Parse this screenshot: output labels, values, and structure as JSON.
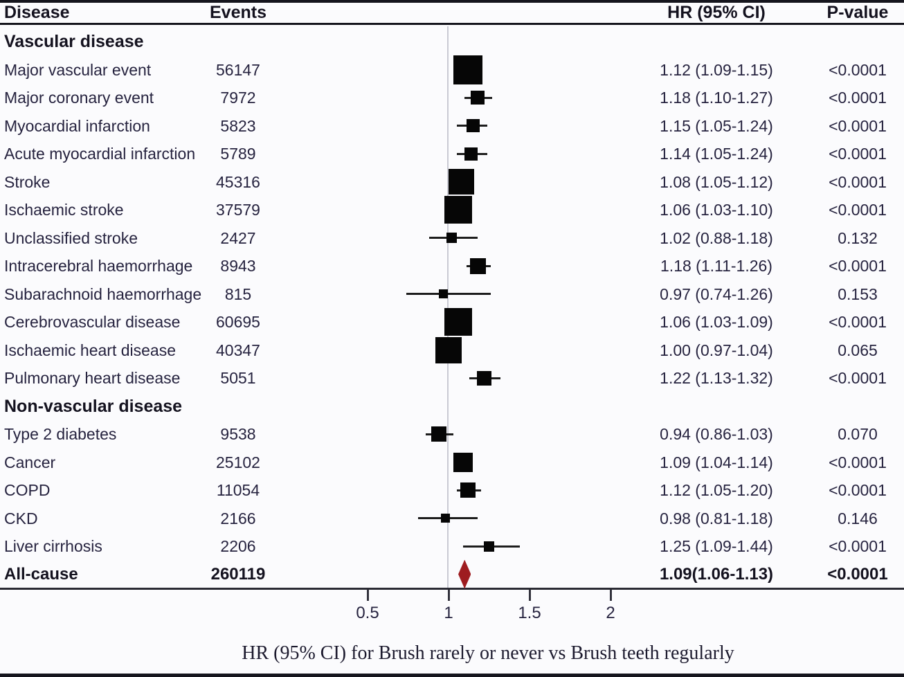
{
  "chart_data": {
    "type": "forest",
    "columns": [
      "Disease",
      "Events",
      "HR (95% CI)",
      "P-value"
    ],
    "xlabel": "HR (95% CI) for Brush rarely or never vs Brush teeth regularly",
    "x_ticks": [
      {
        "label": "0.5",
        "value": 0.5
      },
      {
        "label": "1",
        "value": 1
      },
      {
        "label": "1.5",
        "value": 1.5
      },
      {
        "label": "2",
        "value": 2
      }
    ],
    "x_range": [
      0.5,
      2
    ],
    "reference_line": 1,
    "legend_position": "none",
    "grid": false,
    "marker_color": "#060606",
    "diamond_color": "#9e1c20",
    "rows": [
      {
        "type": "section",
        "label": "Vascular disease"
      },
      {
        "type": "data",
        "label": "Major vascular event",
        "events": "56147",
        "hr_text": "1.12 (1.09-1.15)",
        "p": "<0.0001",
        "est": 1.12,
        "lo": 1.09,
        "hi": 1.15,
        "size": 42
      },
      {
        "type": "data",
        "label": "Major coronary event",
        "events": "7972",
        "hr_text": "1.18 (1.10-1.27)",
        "p": "<0.0001",
        "est": 1.18,
        "lo": 1.1,
        "hi": 1.27,
        "size": 20
      },
      {
        "type": "data",
        "label": "Myocardial infarction",
        "events": "5823",
        "hr_text": "1.15 (1.05-1.24)",
        "p": "<0.0001",
        "est": 1.15,
        "lo": 1.05,
        "hi": 1.24,
        "size": 19
      },
      {
        "type": "data",
        "label": "Acute myocardial infarction",
        "events": "5789",
        "hr_text": "1.14 (1.05-1.24)",
        "p": "<0.0001",
        "est": 1.14,
        "lo": 1.05,
        "hi": 1.24,
        "size": 19
      },
      {
        "type": "data",
        "label": "Stroke",
        "events": "45316",
        "hr_text": "1.08 (1.05-1.12)",
        "p": "<0.0001",
        "est": 1.08,
        "lo": 1.05,
        "hi": 1.12,
        "size": 37
      },
      {
        "type": "data",
        "label": "Ischaemic stroke",
        "events": "37579",
        "hr_text": "1.06 (1.03-1.10)",
        "p": "<0.0001",
        "est": 1.06,
        "lo": 1.03,
        "hi": 1.1,
        "size": 40
      },
      {
        "type": "data",
        "label": "Unclassified stroke",
        "events": "2427",
        "hr_text": "1.02 (0.88-1.18)",
        "p": "0.132",
        "est": 1.02,
        "lo": 0.88,
        "hi": 1.18,
        "size": 15
      },
      {
        "type": "data",
        "label": "Intracerebral haemorrhage",
        "events": "8943",
        "hr_text": "1.18 (1.11-1.26)",
        "p": "<0.0001",
        "est": 1.18,
        "lo": 1.11,
        "hi": 1.26,
        "size": 23
      },
      {
        "type": "data",
        "label": "Subarachnoid haemorrhage",
        "events": "815",
        "hr_text": "0.97 (0.74-1.26)",
        "p": "0.153",
        "est": 0.97,
        "lo": 0.74,
        "hi": 1.26,
        "size": 13
      },
      {
        "type": "data",
        "label": "Cerebrovascular disease",
        "events": "60695",
        "hr_text": "1.06 (1.03-1.09)",
        "p": "<0.0001",
        "est": 1.06,
        "lo": 1.03,
        "hi": 1.09,
        "size": 40
      },
      {
        "type": "data",
        "label": "Ischaemic heart disease",
        "events": "40347",
        "hr_text": "1.00 (0.97-1.04)",
        "p": "0.065",
        "est": 1.0,
        "lo": 0.97,
        "hi": 1.04,
        "size": 38
      },
      {
        "type": "data",
        "label": "Pulmonary heart disease",
        "events": "5051",
        "hr_text": "1.22 (1.13-1.32)",
        "p": "<0.0001",
        "est": 1.22,
        "lo": 1.13,
        "hi": 1.32,
        "size": 21
      },
      {
        "type": "section",
        "label": "Non-vascular disease"
      },
      {
        "type": "data",
        "label": "Type 2 diabetes",
        "events": "9538",
        "hr_text": "0.94 (0.86-1.03)",
        "p": "0.070",
        "est": 0.94,
        "lo": 0.86,
        "hi": 1.03,
        "size": 22
      },
      {
        "type": "data",
        "label": "Cancer",
        "events": "25102",
        "hr_text": "1.09 (1.04-1.14)",
        "p": "<0.0001",
        "est": 1.09,
        "lo": 1.04,
        "hi": 1.14,
        "size": 28
      },
      {
        "type": "data",
        "label": "COPD",
        "events": "11054",
        "hr_text": "1.12 (1.05-1.20)",
        "p": "<0.0001",
        "est": 1.12,
        "lo": 1.05,
        "hi": 1.2,
        "size": 22
      },
      {
        "type": "data",
        "label": "CKD",
        "events": "2166",
        "hr_text": "0.98 (0.81-1.18)",
        "p": "0.146",
        "est": 0.98,
        "lo": 0.81,
        "hi": 1.18,
        "size": 13
      },
      {
        "type": "data",
        "label": "Liver cirrhosis",
        "events": "2206",
        "hr_text": "1.25 (1.09-1.44)",
        "p": "<0.0001",
        "est": 1.25,
        "lo": 1.09,
        "hi": 1.44,
        "size": 15
      },
      {
        "type": "summary",
        "label": "All-cause",
        "events": "260119",
        "hr_text": "1.09(1.06-1.13)",
        "p": "<0.0001",
        "est": 1.09,
        "lo": 1.06,
        "hi": 1.13
      }
    ]
  }
}
